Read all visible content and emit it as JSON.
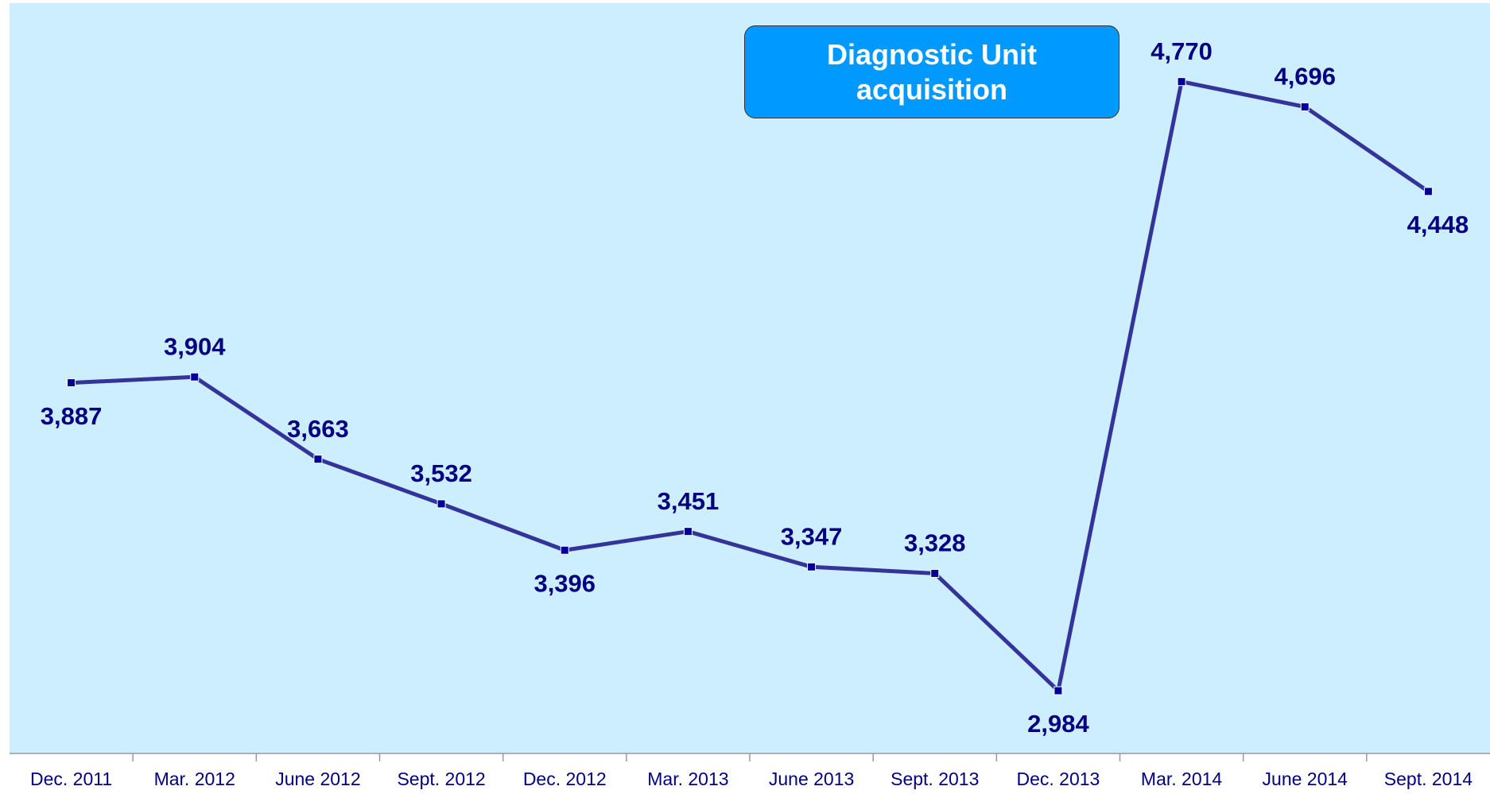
{
  "chart_data": {
    "type": "line",
    "annotation": "Diagnostic Unit acquisition",
    "categories": [
      "Dec. 2011",
      "Mar. 2012",
      "June 2012",
      "Sept. 2012",
      "Dec. 2012",
      "Mar. 2013",
      "June 2013",
      "Sept. 2013",
      "Dec. 2013",
      "Mar. 2014",
      "June 2014",
      "Sept. 2014"
    ],
    "values": [
      3887,
      3904,
      3663,
      3532,
      3396,
      3451,
      3347,
      3328,
      2984,
      4770,
      4696,
      4448
    ],
    "value_labels": [
      "3,887",
      "3,904",
      "3,663",
      "3,532",
      "3,396",
      "3,451",
      "3,347",
      "3,328",
      "2,984",
      "4,770",
      "4,696",
      "4,448"
    ],
    "color": "#333399",
    "marker_color": "#000099",
    "ylim": [
      2800,
      5000
    ]
  }
}
